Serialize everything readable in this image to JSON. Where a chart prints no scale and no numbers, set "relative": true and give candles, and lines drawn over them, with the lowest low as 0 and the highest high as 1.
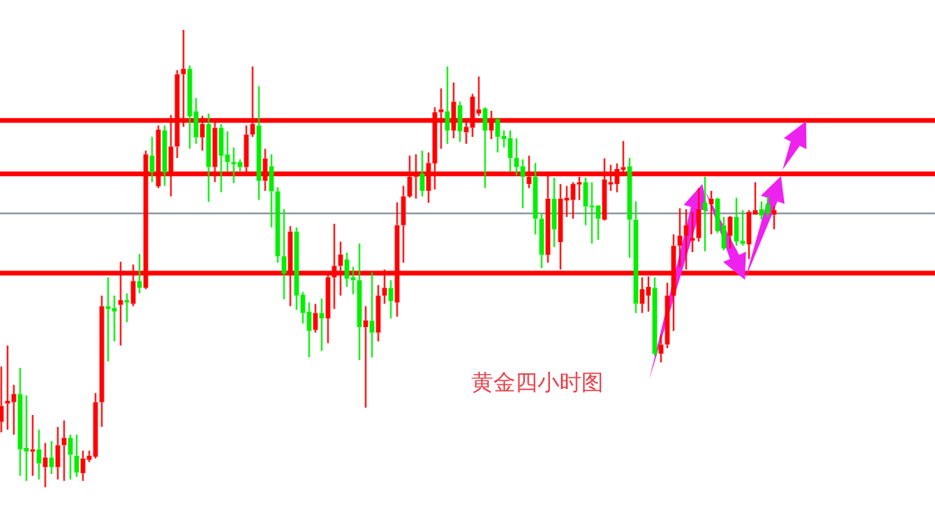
{
  "chart_data": {
    "type": "candlestick",
    "relative": true,
    "categories": [
      null,
      null,
      null,
      null,
      null,
      null,
      null,
      null,
      null,
      null,
      null,
      null,
      null,
      null,
      null,
      null,
      null,
      null,
      null,
      null,
      null,
      null,
      null,
      null,
      null,
      null,
      null,
      null,
      null,
      null,
      null,
      null,
      null,
      null,
      null,
      null,
      null,
      null,
      null,
      null,
      null,
      null,
      null,
      null,
      null,
      null,
      null,
      null,
      null,
      null,
      null,
      null,
      null,
      null,
      null,
      null,
      null,
      null,
      null,
      null,
      null,
      null,
      null,
      null,
      null,
      null,
      null,
      null,
      null,
      null,
      null,
      null,
      null,
      null,
      null,
      null,
      null,
      null,
      null,
      null,
      null,
      null,
      null,
      null,
      null,
      null,
      null,
      null,
      null,
      null,
      null,
      null,
      null,
      null,
      null,
      null,
      null,
      null,
      null,
      null,
      null,
      null,
      null,
      null,
      null,
      null,
      null,
      null,
      null,
      null,
      null,
      null,
      null,
      null,
      null,
      null,
      null,
      null,
      null,
      null,
      null,
      null,
      null,
      null
    ],
    "ohlc": [
      [
        0.143,
        0.264,
        0.12,
        0.178
      ],
      [
        0.183,
        0.31,
        0.126,
        0.189
      ],
      [
        0.186,
        0.224,
        0.115,
        0.204
      ],
      [
        0.204,
        0.261,
        0.025,
        0.083
      ],
      [
        0.086,
        0.201,
        0.014,
        0.078
      ],
      [
        0.078,
        0.158,
        0.025,
        0.083
      ],
      [
        0.083,
        0.126,
        0.017,
        0.052
      ],
      [
        0.044,
        0.097,
        0,
        0.065
      ],
      [
        0.065,
        0.101,
        0.029,
        0.044
      ],
      [
        0.044,
        0.132,
        0.017,
        0.092
      ],
      [
        0.092,
        0.146,
        0.014,
        0.108
      ],
      [
        0.108,
        0.115,
        0.017,
        0.071
      ],
      [
        0.069,
        0.115,
        0.023,
        0.032
      ],
      [
        0.031,
        0.08,
        0.014,
        0.063
      ],
      [
        0.06,
        0.08,
        0.055,
        0.069
      ],
      [
        0.067,
        0.206,
        0.063,
        0.186
      ],
      [
        0.186,
        0.419,
        0.132,
        0.396
      ],
      [
        0.396,
        0.459,
        0.275,
        0.39
      ],
      [
        0.392,
        0.419,
        0.319,
        0.384
      ],
      [
        0.399,
        0.493,
        0.31,
        0.409
      ],
      [
        0.409,
        0.424,
        0.361,
        0.404
      ],
      [
        0.401,
        0.487,
        0.396,
        0.451
      ],
      [
        0.451,
        0.51,
        0.424,
        0.436
      ],
      [
        0.436,
        0.736,
        0.433,
        0.728
      ],
      [
        0.725,
        0.766,
        0.667,
        0.688
      ],
      [
        0.658,
        0.791,
        0.654,
        0.782
      ],
      [
        0.78,
        0.791,
        0.659,
        0.688
      ],
      [
        0.688,
        0.814,
        0.636,
        0.745
      ],
      [
        0.745,
        0.912,
        0.72,
        0.903
      ],
      [
        0.903,
        1,
        0.788,
        0.915
      ],
      [
        0.915,
        0.922,
        0.74,
        0.811
      ],
      [
        0.822,
        0.851,
        0.751,
        0.765
      ],
      [
        0.765,
        0.812,
        0.736,
        0.794
      ],
      [
        0.794,
        0.817,
        0.624,
        0.7
      ],
      [
        0.7,
        0.805,
        0.667,
        0.786
      ],
      [
        0.786,
        0.794,
        0.645,
        0.725
      ],
      [
        0.728,
        0.778,
        0.69,
        0.711
      ],
      [
        0.711,
        0.743,
        0.665,
        0.706
      ],
      [
        0.711,
        0.717,
        0.69,
        0.7
      ],
      [
        0.7,
        0.791,
        0.686,
        0.771
      ],
      [
        0.771,
        0.92,
        0.766,
        0.794
      ],
      [
        0.791,
        0.877,
        0.628,
        0.67
      ],
      [
        0.67,
        0.74,
        0.648,
        0.719
      ],
      [
        0.702,
        0.728,
        0.568,
        0.647
      ],
      [
        0.647,
        0.656,
        0.491,
        0.505
      ],
      [
        0.505,
        0.608,
        0.411,
        0.467
      ],
      [
        0.467,
        0.571,
        0.396,
        0.559
      ],
      [
        0.559,
        0.568,
        0.388,
        0.419
      ],
      [
        0.421,
        0.427,
        0.358,
        0.381
      ],
      [
        0.384,
        0.404,
        0.284,
        0.342
      ],
      [
        0.344,
        0.401,
        0.338,
        0.381
      ],
      [
        0.381,
        0.413,
        0.298,
        0.369
      ],
      [
        0.369,
        0.47,
        0.315,
        0.459
      ],
      [
        0.459,
        0.576,
        0.39,
        0.484
      ],
      [
        0.484,
        0.537,
        0.419,
        0.509
      ],
      [
        0.498,
        0.513,
        0.438,
        0.456
      ],
      [
        0.459,
        0.482,
        0.422,
        0.453
      ],
      [
        0.453,
        0.533,
        0.278,
        0.35
      ],
      [
        0.35,
        0.396,
        0.174,
        0.365
      ],
      [
        0.364,
        0.47,
        0.284,
        0.338
      ],
      [
        0.338,
        0.442,
        0.319,
        0.419
      ],
      [
        0.419,
        0.476,
        0.401,
        0.436
      ],
      [
        0.436,
        0.453,
        0.369,
        0.407
      ],
      [
        0.404,
        0.623,
        0.373,
        0.573
      ],
      [
        0.573,
        0.659,
        0.491,
        0.636
      ],
      [
        0.636,
        0.725,
        0.633,
        0.679
      ],
      [
        0.679,
        0.728,
        0.631,
        0.686
      ],
      [
        0.686,
        0.736,
        0.636,
        0.648
      ],
      [
        0.648,
        0.732,
        0.622,
        0.709
      ],
      [
        0.708,
        0.831,
        0.651,
        0.82
      ],
      [
        0.82,
        0.872,
        0.74,
        0.826
      ],
      [
        0.822,
        0.92,
        0.751,
        0.78
      ],
      [
        0.78,
        0.885,
        0.763,
        0.843
      ],
      [
        0.835,
        0.843,
        0.755,
        0.778
      ],
      [
        0.776,
        0.805,
        0.751,
        0.788
      ],
      [
        0.786,
        0.86,
        0.766,
        0.854
      ],
      [
        0.817,
        0.898,
        0.812,
        0.826
      ],
      [
        0.828,
        0.831,
        0.654,
        0.78
      ],
      [
        0.78,
        0.823,
        0.761,
        0.805
      ],
      [
        0.805,
        0.808,
        0.732,
        0.766
      ],
      [
        0.768,
        0.78,
        0.743,
        0.761
      ],
      [
        0.763,
        0.78,
        0.69,
        0.72
      ],
      [
        0.72,
        0.763,
        0.682,
        0.7
      ],
      [
        0.702,
        0.717,
        0.61,
        0.679
      ],
      [
        0.663,
        0.725,
        0.654,
        0.679
      ],
      [
        0.679,
        0.709,
        0.553,
        0.587
      ],
      [
        0.587,
        0.599,
        0.479,
        0.508
      ],
      [
        0.508,
        0.69,
        0.491,
        0.631
      ],
      [
        0.631,
        0.677,
        0.525,
        0.564
      ],
      [
        0.536,
        0.663,
        0.476,
        0.631
      ],
      [
        0.627,
        0.659,
        0.591,
        0.633
      ],
      [
        0.628,
        0.667,
        0.587,
        0.663
      ],
      [
        0.662,
        0.679,
        0.628,
        0.667
      ],
      [
        0.667,
        0.677,
        0.573,
        0.614
      ],
      [
        0.616,
        0.667,
        0.533,
        0.612
      ],
      [
        0.616,
        0.617,
        0.541,
        0.587
      ],
      [
        0.585,
        0.719,
        0.583,
        0.673
      ],
      [
        0.662,
        0.705,
        0.648,
        0.667
      ],
      [
        0.663,
        0.708,
        0.645,
        0.696
      ],
      [
        0.694,
        0.757,
        0.688,
        0.7
      ],
      [
        0.702,
        0.72,
        0.502,
        0.585
      ],
      [
        0.585,
        0.625,
        0.381,
        0.401
      ],
      [
        0.401,
        0.459,
        0.381,
        0.433
      ],
      [
        0.419,
        0.461,
        0.384,
        0.438
      ],
      [
        0.436,
        0.459,
        0.287,
        0.292
      ],
      [
        0.292,
        0.333,
        0.273,
        0.312
      ],
      [
        0.312,
        0.447,
        0.304,
        0.419
      ],
      [
        0.419,
        0.553,
        0.342,
        0.528
      ],
      [
        0.528,
        0.61,
        0.482,
        0.55
      ],
      [
        0.55,
        0.608,
        0.476,
        0.573
      ],
      [
        0.539,
        0.602,
        0.514,
        0.545
      ],
      [
        0.545,
        0.654,
        0.537,
        0.608
      ],
      [
        0.622,
        0.679,
        0.516,
        0.606
      ],
      [
        0.619,
        0.648,
        0.553,
        0.631
      ],
      [
        0.631,
        0.633,
        0.556,
        0.56
      ],
      [
        0.573,
        0.591,
        0.518,
        0.522
      ],
      [
        0.55,
        0.593,
        0.522,
        0.591
      ],
      [
        0.591,
        0.633,
        0.528,
        0.537
      ],
      [
        0.539,
        0.606,
        0.528,
        0.532
      ],
      [
        0.531,
        0.606,
        0.499,
        0.602
      ],
      [
        0.596,
        0.667,
        0.596,
        0.606
      ],
      [
        0.608,
        0.625,
        0.585,
        0.594
      ],
      [
        0.619,
        0.636,
        0.591,
        0.599
      ],
      [
        0.596,
        0.614,
        0.564,
        0.606
      ]
    ],
    "ref_lines": [
      {
        "axis": "y",
        "value": 0.802,
        "color": "#ff0000"
      },
      {
        "axis": "y",
        "value": 0.685,
        "color": "#ff0000"
      },
      {
        "axis": "y",
        "value": 0.468,
        "color": "#ff0000"
      },
      {
        "axis": "y",
        "value": 0.599,
        "color": "#808b96"
      }
    ],
    "annotations": [
      "黄金四小时图"
    ]
  }
}
